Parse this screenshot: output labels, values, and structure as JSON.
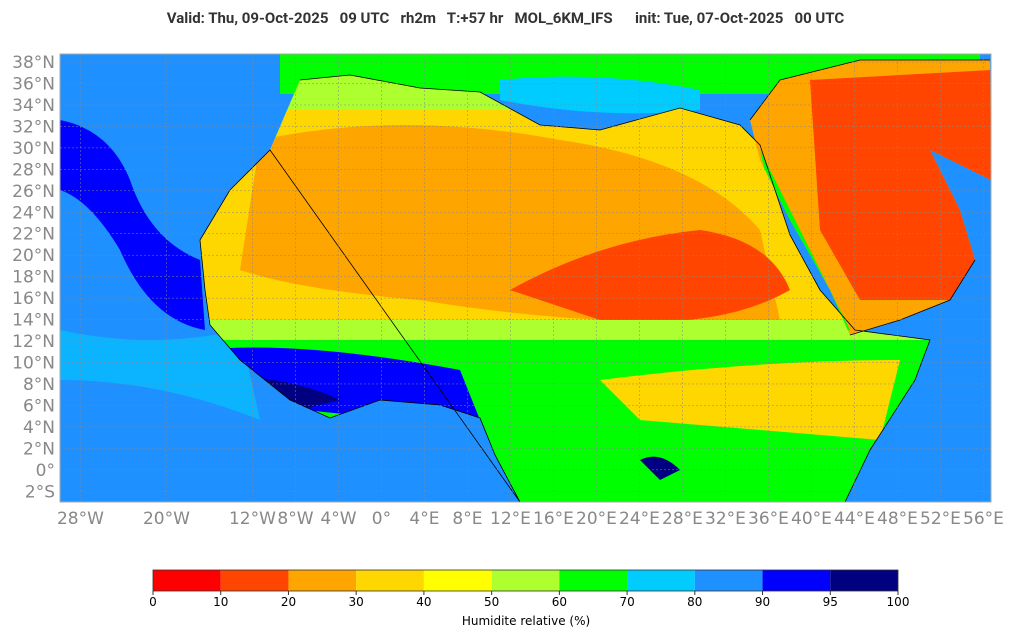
{
  "title": "Valid: Thu, 09-Oct-2025   09 UTC   rh2m   T:+57 hr   MOL_6KM_IFS      init: Tue, 07-Oct-2025   00 UTC",
  "map": {
    "lonlim": [
      -29.9,
      56.7
    ],
    "latlim": [
      -3.0,
      38.75
    ],
    "lat_ticks": [
      {
        "value": 38,
        "label": "38°N"
      },
      {
        "value": 36,
        "label": "36°N"
      },
      {
        "value": 34,
        "label": "34°N"
      },
      {
        "value": 32,
        "label": "32°N"
      },
      {
        "value": 30,
        "label": "30°N"
      },
      {
        "value": 28,
        "label": "28°N"
      },
      {
        "value": 26,
        "label": "26°N"
      },
      {
        "value": 24,
        "label": "24°N"
      },
      {
        "value": 22,
        "label": "22°N"
      },
      {
        "value": 20,
        "label": "20°N"
      },
      {
        "value": 18,
        "label": "18°N"
      },
      {
        "value": 16,
        "label": "16°N"
      },
      {
        "value": 14,
        "label": "14°N"
      },
      {
        "value": 12,
        "label": "12°N"
      },
      {
        "value": 10,
        "label": "10°N"
      },
      {
        "value": 8,
        "label": "8°N"
      },
      {
        "value": 6,
        "label": "6°N"
      },
      {
        "value": 4,
        "label": "4°N"
      },
      {
        "value": 2,
        "label": "2°N"
      },
      {
        "value": 0,
        "label": "0°"
      },
      {
        "value": -2,
        "label": "2°S"
      }
    ],
    "lon_ticks": [
      {
        "value": -28,
        "label": "28°W"
      },
      {
        "value": -20,
        "label": "20°W"
      },
      {
        "value": -12,
        "label": "12°W"
      },
      {
        "value": -8,
        "label": "8°W"
      },
      {
        "value": -4,
        "label": "4°W"
      },
      {
        "value": 0,
        "label": "0°"
      },
      {
        "value": 4,
        "label": "4°E"
      },
      {
        "value": 8,
        "label": "8°E"
      },
      {
        "value": 12,
        "label": "12°E"
      },
      {
        "value": 16,
        "label": "16°E"
      },
      {
        "value": 20,
        "label": "20°E"
      },
      {
        "value": 24,
        "label": "24°E"
      },
      {
        "value": 28,
        "label": "28°E"
      },
      {
        "value": 32,
        "label": "32°E"
      },
      {
        "value": 36,
        "label": "36°E"
      },
      {
        "value": 40,
        "label": "40°E"
      },
      {
        "value": 44,
        "label": "44°E"
      },
      {
        "value": 48,
        "label": "48°E"
      },
      {
        "value": 52,
        "label": "52°E"
      },
      {
        "value": 56,
        "label": "56°E"
      }
    ]
  },
  "colorbar": {
    "ticks": [
      0,
      10,
      20,
      30,
      40,
      50,
      60,
      70,
      80,
      90,
      95,
      100
    ],
    "colors": [
      "#ff0000",
      "#ff4500",
      "#ffa500",
      "#ffd700",
      "#ffff00",
      "#adff2f",
      "#00ff00",
      "#00ccff",
      "#1e90ff",
      "#0000ff",
      "#000080"
    ],
    "label": "Humidite relative (%)"
  }
}
